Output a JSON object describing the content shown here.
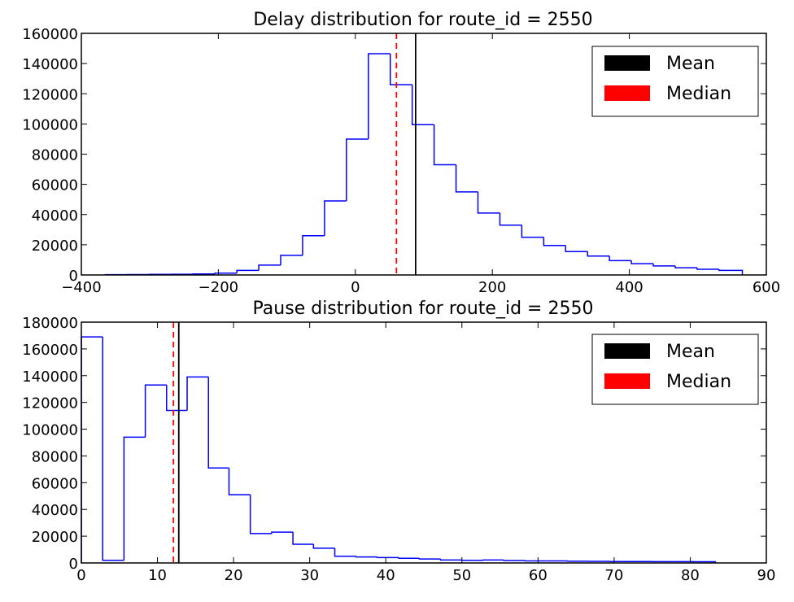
{
  "chart_data": [
    {
      "type": "histogram",
      "title": "Delay distribution for route_id = 2550",
      "xlabel": "",
      "ylabel": "",
      "xlim": [
        -400,
        600
      ],
      "ylim": [
        0,
        160000
      ],
      "xticks": [
        -400,
        -200,
        0,
        200,
        400,
        600
      ],
      "yticks": [
        0,
        20000,
        40000,
        60000,
        80000,
        100000,
        120000,
        140000,
        160000
      ],
      "xtick_labels": [
        "−400",
        "−200",
        "0",
        "200",
        "400",
        "600"
      ],
      "ytick_labels": [
        "0",
        "20000",
        "40000",
        "60000",
        "80000",
        "100000",
        "120000",
        "140000",
        "160000"
      ],
      "bin_edges": [
        -365,
        -333,
        -301,
        -269,
        -237,
        -205,
        -173,
        -141,
        -109,
        -77,
        -45,
        -13,
        19,
        51,
        83,
        115,
        147,
        179,
        211,
        243,
        275,
        307,
        339,
        371,
        403,
        435,
        467,
        499,
        531,
        565
      ],
      "counts": [
        200,
        300,
        400,
        500,
        700,
        1200,
        3000,
        6500,
        13000,
        26000,
        49000,
        90000,
        146500,
        126000,
        99500,
        73000,
        55000,
        41000,
        33000,
        25000,
        19500,
        15500,
        12500,
        9500,
        7500,
        6000,
        4800,
        3800,
        3000
      ],
      "mean": 88,
      "median": 60,
      "series_color": "#0000ff",
      "legend": {
        "placement": "upper-right",
        "entries": [
          {
            "label": "Mean",
            "color": "#000000"
          },
          {
            "label": "Median",
            "color": "#ff0000"
          }
        ]
      },
      "grid": false
    },
    {
      "type": "histogram",
      "title": "Pause distribution for route_id = 2550",
      "xlabel": "",
      "ylabel": "",
      "xlim": [
        0,
        90
      ],
      "ylim": [
        0,
        180000
      ],
      "xticks": [
        0,
        10,
        20,
        30,
        40,
        50,
        60,
        70,
        80,
        90
      ],
      "yticks": [
        0,
        20000,
        40000,
        60000,
        80000,
        100000,
        120000,
        140000,
        160000,
        180000
      ],
      "xtick_labels": [
        "0",
        "10",
        "20",
        "30",
        "40",
        "50",
        "60",
        "70",
        "80",
        "90"
      ],
      "ytick_labels": [
        "0",
        "20000",
        "40000",
        "60000",
        "80000",
        "100000",
        "120000",
        "140000",
        "160000",
        "180000"
      ],
      "bin_edges": [
        0,
        2.8,
        5.6,
        8.4,
        11.2,
        13.9,
        16.7,
        19.4,
        22.2,
        25.0,
        27.8,
        30.5,
        33.3,
        36.1,
        38.9,
        41.7,
        44.4,
        47.2,
        50.0,
        52.8,
        55.5,
        58.3,
        61.1,
        63.9,
        66.7,
        69.4,
        72.2,
        75.0,
        77.8,
        80.5,
        83.3
      ],
      "counts": [
        169000,
        2000,
        94000,
        133000,
        114000,
        139000,
        71000,
        51000,
        22000,
        23000,
        14000,
        11000,
        5000,
        4500,
        4000,
        3500,
        3000,
        2200,
        2000,
        2200,
        1800,
        1500,
        1500,
        1300,
        1200,
        1100,
        1100,
        1000,
        1000,
        900
      ],
      "mean": 12.8,
      "median": 12.1,
      "series_color": "#0000ff",
      "legend": {
        "placement": "upper-right",
        "entries": [
          {
            "label": "Mean",
            "color": "#000000"
          },
          {
            "label": "Median",
            "color": "#ff0000"
          }
        ]
      },
      "grid": false
    }
  ]
}
